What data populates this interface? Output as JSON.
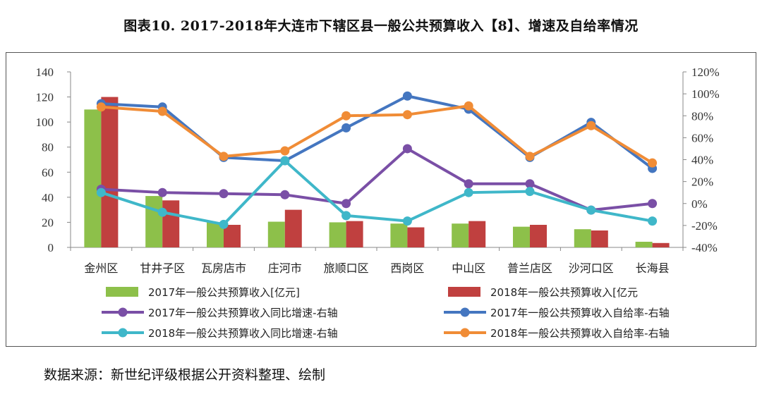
{
  "title": "图表10. 2017-2018年大连市下辖区县一般公共预算收入【8】、增速及自给率情况",
  "source": "数据来源：新世纪评级根据公开资料整理、绘制",
  "colors": {
    "bar2017": "#8dc04a",
    "bar2018": "#c0403f",
    "growth2017": "#7a4fa6",
    "selfsuff2017": "#4476c0",
    "growth2018": "#3fb7c9",
    "selfsuff2018": "#f08c36"
  },
  "chart_data": {
    "type": "bar",
    "title": "图表10. 2017-2018年大连市下辖区县一般公共预算收入【8】、增速及自给率情况",
    "categories": [
      "金州区",
      "甘井子区",
      "瓦房店市",
      "庄河市",
      "旅顺口区",
      "西岗区",
      "中山区",
      "普兰店区",
      "沙河口区",
      "长海县"
    ],
    "left_axis": {
      "ylim": [
        0,
        140
      ],
      "ticks": [
        "0",
        "20",
        "40",
        "60",
        "80",
        "100",
        "120",
        "140"
      ]
    },
    "right_axis": {
      "ylim": [
        -40,
        120
      ],
      "ticks": [
        "-40%",
        "-20%",
        "0%",
        "20%",
        "40%",
        "60%",
        "80%",
        "100%",
        "120%"
      ]
    },
    "series": [
      {
        "name": "2017年一般公共预算收入[亿元]",
        "type": "bar",
        "axis": "left",
        "color_key": "bar2017",
        "values": [
          110,
          41,
          20,
          20.5,
          20,
          19,
          19,
          16.5,
          14.5,
          4.5
        ]
      },
      {
        "name": "2018年一般公共预算收入[亿元",
        "type": "bar",
        "axis": "left",
        "color_key": "bar2018",
        "values": [
          120,
          37.5,
          18,
          30,
          21,
          16,
          21,
          18,
          13.5,
          3.5
        ]
      },
      {
        "name": "2017年一般公共预算收入同比增速-右轴",
        "type": "line",
        "axis": "right",
        "color_key": "growth2017",
        "values": [
          13,
          10,
          9,
          8,
          0,
          50,
          18,
          18,
          -6,
          0
        ]
      },
      {
        "name": "2017年一般公共预算收入自给率-右轴",
        "type": "line",
        "axis": "right",
        "color_key": "selfsuff2017",
        "values": [
          91,
          88,
          42,
          39,
          69,
          98,
          86,
          42,
          74,
          32
        ]
      },
      {
        "name": "2018年一般公共预算收入同比增速-右轴",
        "type": "line",
        "axis": "right",
        "color_key": "growth2018",
        "values": [
          10,
          -8,
          -19,
          39,
          -11,
          -16,
          10,
          11,
          -6,
          -16
        ]
      },
      {
        "name": "2018年一般公共预算收入自给率-右轴",
        "type": "line",
        "axis": "right",
        "color_key": "selfsuff2018",
        "values": [
          88,
          84,
          43,
          48,
          80,
          81,
          89,
          43,
          71,
          37
        ]
      }
    ]
  }
}
